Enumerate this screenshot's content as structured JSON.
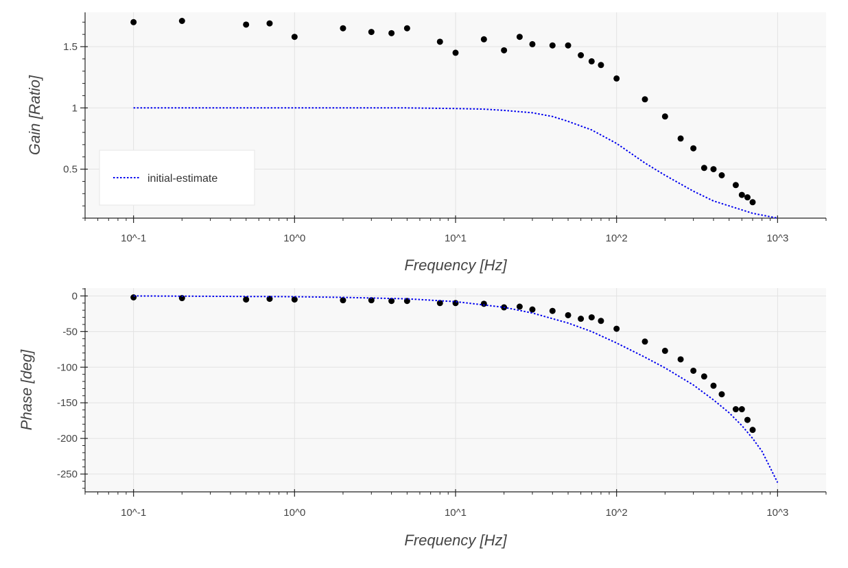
{
  "chart_data": [
    {
      "type": "scatter",
      "title": "",
      "xlabel": "Frequency [Hz]",
      "ylabel": "Gain [Ratio]",
      "xscale": "log",
      "xlim": [
        0.05,
        2000
      ],
      "ylim": [
        0.1,
        1.78
      ],
      "grid": true,
      "x_ticks": [
        {
          "value": 0.1,
          "label": "10^-1"
        },
        {
          "value": 1,
          "label": "10^0"
        },
        {
          "value": 10,
          "label": "10^1"
        },
        {
          "value": 100,
          "label": "10^2"
        },
        {
          "value": 1000,
          "label": "10^3"
        }
      ],
      "y_ticks": [
        {
          "value": 0.5,
          "label": "0.5"
        },
        {
          "value": 1,
          "label": "1"
        },
        {
          "value": 1.5,
          "label": "1.5"
        }
      ],
      "legend": {
        "position": "bottom-left",
        "entries": [
          "initial-estimate"
        ]
      },
      "colors": {
        "measured": "#000000",
        "estimate": "#0000ee"
      },
      "series": [
        {
          "style": "scatter",
          "x": [
            0.1,
            0.2,
            0.5,
            0.7,
            1,
            2,
            3,
            4,
            5,
            8,
            10,
            15,
            20,
            25,
            30,
            40,
            50,
            60,
            70,
            80,
            100,
            150,
            200,
            250,
            300,
            350,
            400,
            450,
            550,
            600,
            650,
            700
          ],
          "y": [
            1.7,
            1.71,
            1.68,
            1.69,
            1.58,
            1.65,
            1.62,
            1.61,
            1.65,
            1.54,
            1.45,
            1.56,
            1.47,
            1.58,
            1.52,
            1.51,
            1.51,
            1.43,
            1.38,
            1.35,
            1.24,
            1.07,
            0.93,
            0.75,
            0.67,
            0.51,
            0.5,
            0.45,
            0.37,
            0.29,
            0.27,
            0.23
          ]
        },
        {
          "name": "initial-estimate",
          "style": "dotted-line",
          "x": [
            0.1,
            1,
            5,
            10,
            15,
            20,
            30,
            40,
            50,
            70,
            100,
            150,
            200,
            300,
            400,
            500,
            700,
            1000
          ],
          "y": [
            1.0,
            1.0,
            1.0,
            0.995,
            0.99,
            0.98,
            0.96,
            0.93,
            0.89,
            0.82,
            0.71,
            0.55,
            0.45,
            0.32,
            0.24,
            0.2,
            0.14,
            0.1
          ]
        }
      ]
    },
    {
      "type": "scatter",
      "title": "",
      "xlabel": "Frequency [Hz]",
      "ylabel": "Phase [deg]",
      "xscale": "log",
      "xlim": [
        0.05,
        2000
      ],
      "ylim": [
        -275,
        11
      ],
      "grid": true,
      "x_ticks": [
        {
          "value": 0.1,
          "label": "10^-1"
        },
        {
          "value": 1,
          "label": "10^0"
        },
        {
          "value": 10,
          "label": "10^1"
        },
        {
          "value": 100,
          "label": "10^2"
        },
        {
          "value": 1000,
          "label": "10^3"
        }
      ],
      "y_ticks": [
        {
          "value": 0,
          "label": "0"
        },
        {
          "value": -50,
          "label": "-50"
        },
        {
          "value": -100,
          "label": "-100"
        },
        {
          "value": -150,
          "label": "-150"
        },
        {
          "value": -200,
          "label": "-200"
        },
        {
          "value": -250,
          "label": "-250"
        }
      ],
      "colors": {
        "measured": "#000000",
        "estimate": "#0000ee"
      },
      "series": [
        {
          "style": "scatter",
          "x": [
            0.1,
            0.2,
            0.5,
            0.7,
            1,
            2,
            3,
            4,
            5,
            8,
            10,
            15,
            20,
            25,
            30,
            40,
            50,
            60,
            70,
            80,
            100,
            150,
            200,
            250,
            300,
            350,
            400,
            450,
            550,
            600,
            650,
            700
          ],
          "y": [
            -2,
            -3,
            -5,
            -4,
            -5,
            -6,
            -6,
            -7,
            -7,
            -10,
            -10,
            -11,
            -16,
            -15,
            -19,
            -21,
            -27,
            -32,
            -30,
            -35,
            -46,
            -64,
            -77,
            -89,
            -105,
            -113,
            -126,
            -138,
            -159,
            -159,
            -174,
            -188
          ]
        },
        {
          "style": "dotted-line",
          "x": [
            0.1,
            1,
            2,
            5,
            10,
            20,
            30,
            50,
            70,
            100,
            150,
            200,
            300,
            400,
            500,
            600,
            700,
            800,
            1000
          ],
          "y": [
            0,
            -1,
            -2,
            -4,
            -8,
            -16,
            -24,
            -38,
            -50,
            -66,
            -86,
            -101,
            -125,
            -146,
            -164,
            -182,
            -200,
            -218,
            -262
          ]
        }
      ]
    }
  ]
}
